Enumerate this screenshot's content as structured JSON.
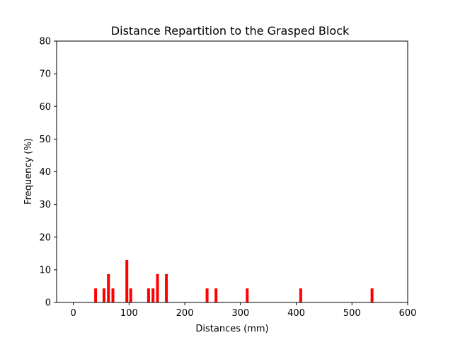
{
  "chart_data": {
    "type": "bar",
    "title": "Distance Repartition to the Grasped Block",
    "xlabel": "Distances (mm)",
    "ylabel": "Frequency (%)",
    "xlim": [
      -30,
      600
    ],
    "ylim": [
      0,
      80
    ],
    "xticks": [
      0,
      100,
      200,
      300,
      400,
      500,
      600
    ],
    "yticks": [
      0,
      10,
      20,
      30,
      40,
      50,
      60,
      70,
      80
    ],
    "grid": false,
    "bar_color": "#ff0000",
    "bar_width": 4,
    "series": [
      {
        "x": [
          40,
          55,
          63,
          71,
          96,
          103,
          135,
          143,
          151,
          167,
          240,
          256,
          312,
          408,
          536
        ],
        "values": [
          4.3,
          4.3,
          8.7,
          4.3,
          13.0,
          4.3,
          4.3,
          4.3,
          8.7,
          8.7,
          4.3,
          4.3,
          4.3,
          4.3,
          4.3
        ]
      }
    ]
  }
}
